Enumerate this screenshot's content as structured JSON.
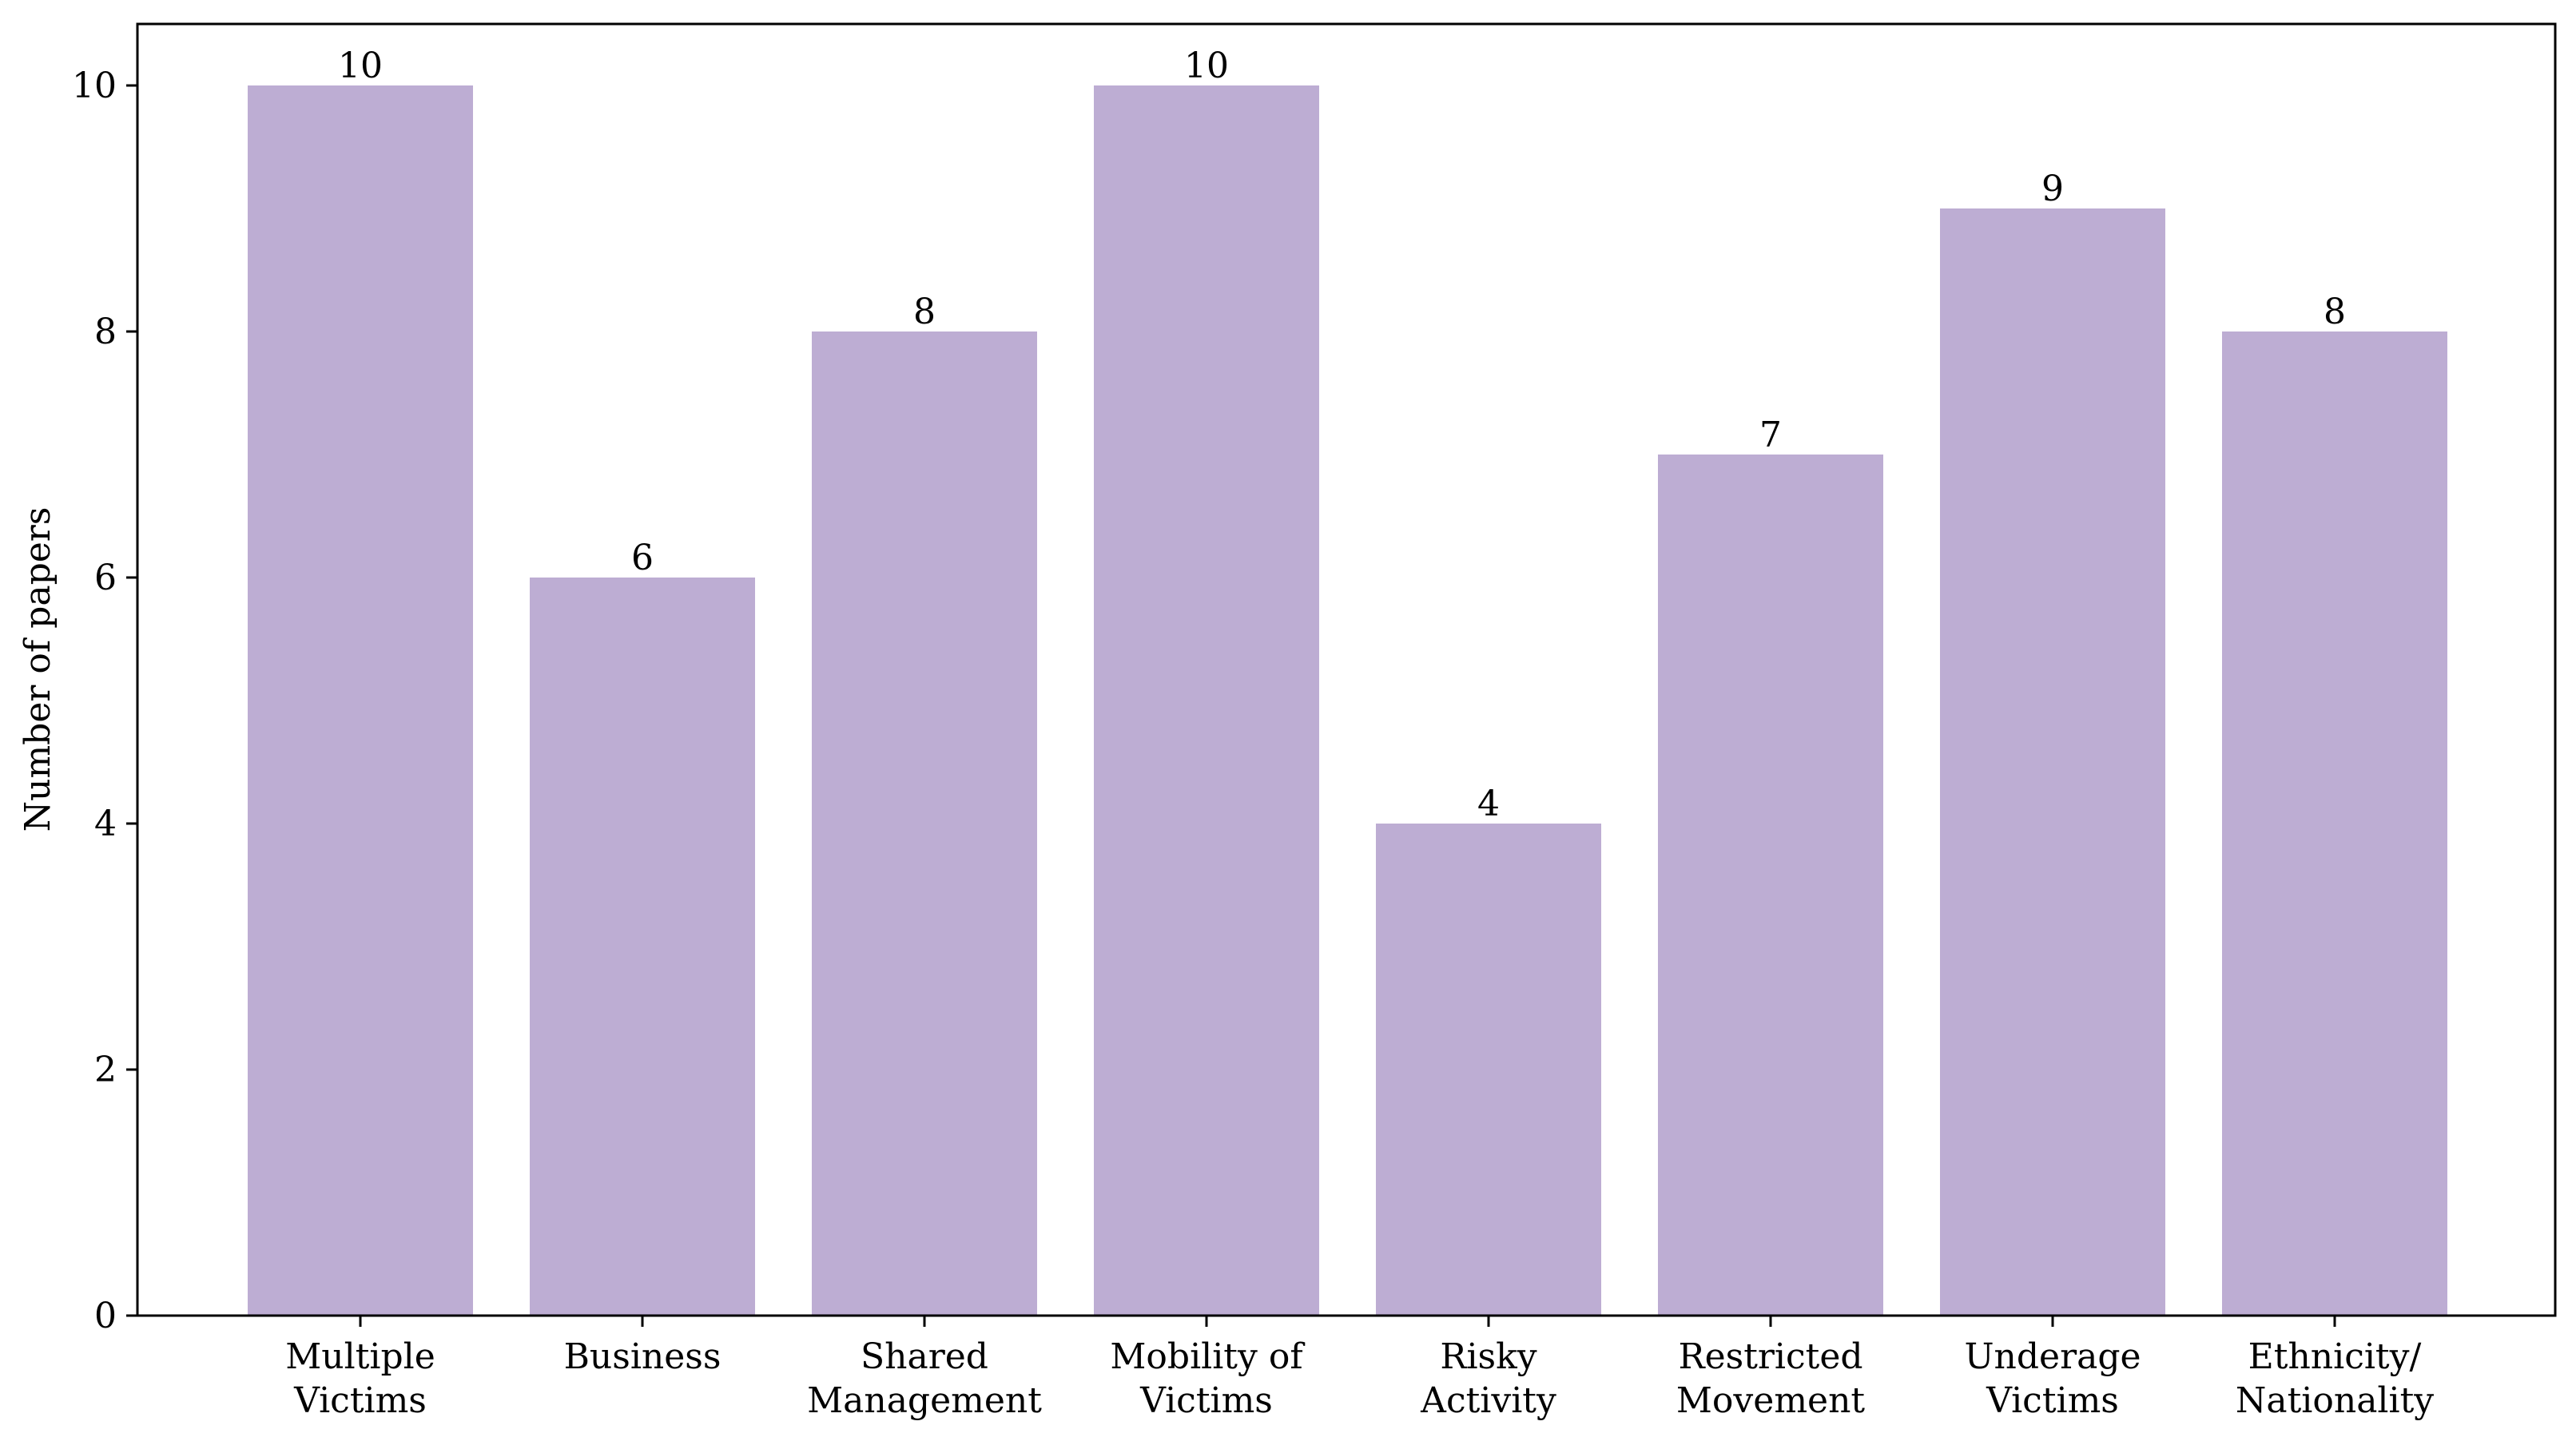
{
  "chart_data": {
    "type": "bar",
    "title": "",
    "xlabel": "",
    "ylabel": "Number of papers",
    "categories": [
      [
        "Multiple",
        "Victims"
      ],
      [
        "Business"
      ],
      [
        "Shared",
        "Management"
      ],
      [
        "Mobility of",
        "Victims"
      ],
      [
        "Risky",
        "Activity"
      ],
      [
        "Restricted",
        "Movement"
      ],
      [
        "Underage",
        "Victims"
      ],
      [
        "Ethnicity/",
        "Nationality"
      ]
    ],
    "values": [
      10,
      6,
      8,
      10,
      4,
      7,
      9,
      8
    ],
    "data_labels": [
      "10",
      "6",
      "8",
      "10",
      "4",
      "7",
      "9",
      "8"
    ],
    "ylim": [
      0,
      10.5
    ],
    "yticks": [
      0,
      2,
      4,
      6,
      8,
      10
    ],
    "ytick_labels": [
      "0",
      "2",
      "4",
      "6",
      "8",
      "10"
    ],
    "grid": false,
    "legend": "none",
    "bar_color": "#bdadd3"
  }
}
